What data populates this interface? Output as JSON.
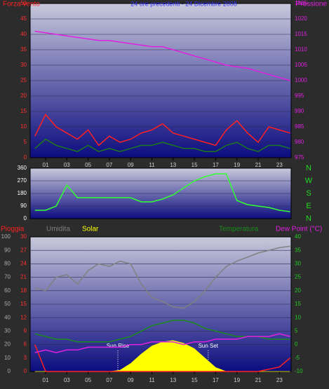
{
  "chart_data": [
    {
      "type": "line",
      "title": "24 ore precedenti - 24 Dicembre 2008",
      "x": [
        0,
        1,
        2,
        3,
        4,
        5,
        6,
        7,
        8,
        9,
        10,
        11,
        12,
        13,
        14,
        15,
        16,
        17,
        18,
        19,
        20,
        21,
        22,
        23,
        24
      ],
      "xlim": [
        -0.45,
        24.1
      ],
      "xticks": [
        {
          "value": 1,
          "label": "01"
        },
        {
          "value": 3,
          "label": "03"
        },
        {
          "value": 5,
          "label": "05"
        },
        {
          "value": 7,
          "label": "07"
        },
        {
          "value": 9,
          "label": "09"
        },
        {
          "value": 11,
          "label": "11"
        },
        {
          "value": 13,
          "label": "13"
        },
        {
          "value": 15,
          "label": "15"
        },
        {
          "value": 17,
          "label": "17"
        },
        {
          "value": 19,
          "label": "19"
        },
        {
          "value": 21,
          "label": "21"
        },
        {
          "value": 23,
          "label": "23"
        }
      ],
      "ylim": [
        0,
        50
      ],
      "yticks": [
        0,
        5,
        10,
        15,
        20,
        25,
        30,
        35,
        40,
        45,
        50
      ],
      "y2lim": [
        975,
        1025
      ],
      "y2ticks": [
        975,
        980,
        985,
        990,
        995,
        1000,
        1005,
        1010,
        1015,
        1020,
        1025
      ],
      "grid": true,
      "series": [
        {
          "name": "Forza vento",
          "color": "#ff2020",
          "values": [
            7,
            14,
            10,
            8,
            6,
            9,
            4,
            7,
            5,
            6,
            8,
            9,
            11,
            8,
            7,
            6,
            5,
            4,
            9,
            12,
            8,
            5,
            10,
            9,
            8
          ]
        },
        {
          "color": "#1c7a1c",
          "values": [
            3,
            6,
            4,
            3,
            2,
            4,
            2,
            3,
            2,
            3,
            4,
            4,
            5,
            4,
            3,
            3,
            2,
            2,
            4,
            5,
            3,
            2,
            4,
            4,
            3
          ]
        },
        {
          "name": "Pressione",
          "color": "#e020e0",
          "axis": "y2",
          "values": [
            1016,
            1015.5,
            1015,
            1014.5,
            1014,
            1013.5,
            1013,
            1013,
            1012.5,
            1012,
            1011.5,
            1011,
            1011,
            1010,
            1009,
            1008,
            1007,
            1006,
            1005,
            1004.5,
            1004,
            1003,
            1002,
            1001,
            1000
          ]
        }
      ]
    },
    {
      "type": "line",
      "x": [
        0,
        1,
        2,
        3,
        4,
        5,
        6,
        7,
        8,
        9,
        10,
        11,
        12,
        13,
        14,
        15,
        16,
        17,
        18,
        19,
        20,
        21,
        22,
        23,
        24
      ],
      "xlim": [
        -0.45,
        24.1
      ],
      "ylim": [
        0,
        360
      ],
      "yticks": [
        0,
        90,
        180,
        270,
        360
      ],
      "y2lim": [
        0,
        360
      ],
      "y2ticks": [
        {
          "value": 360,
          "label": "N"
        },
        {
          "value": 270,
          "label": "W"
        },
        {
          "value": 180,
          "label": "S"
        },
        {
          "value": 90,
          "label": "E"
        },
        {
          "value": 0,
          "label": "N"
        }
      ],
      "grid": true,
      "series": [
        {
          "color": "#33ff33",
          "values": [
            60,
            60,
            90,
            240,
            150,
            150,
            150,
            150,
            150,
            150,
            120,
            120,
            140,
            170,
            220,
            270,
            300,
            320,
            320,
            130,
            100,
            90,
            80,
            60,
            50
          ]
        }
      ]
    },
    {
      "type": "line",
      "x": [
        0,
        1,
        2,
        3,
        4,
        5,
        6,
        7,
        8,
        9,
        10,
        11,
        12,
        13,
        14,
        15,
        16,
        17,
        18,
        19,
        20,
        21,
        22,
        23,
        24
      ],
      "xlim": [
        -0.45,
        24.1
      ],
      "xticks": [
        {
          "value": 1,
          "label": "01"
        },
        {
          "value": 3,
          "label": "03"
        },
        {
          "value": 5,
          "label": "05"
        },
        {
          "value": 7,
          "label": "07"
        },
        {
          "value": 9,
          "label": "09"
        },
        {
          "value": 11,
          "label": "11"
        },
        {
          "value": 13,
          "label": "13"
        },
        {
          "value": 15,
          "label": "15"
        },
        {
          "value": 17,
          "label": "17"
        },
        {
          "value": 19,
          "label": "19"
        },
        {
          "value": 21,
          "label": "21"
        },
        {
          "value": 23,
          "label": "23"
        }
      ],
      "ylim": [
        0,
        100
      ],
      "yticks": [
        0,
        10,
        20,
        30,
        40,
        50,
        60,
        70,
        80,
        90,
        100
      ],
      "y3lim": [
        0,
        30
      ],
      "y3ticks": [
        0,
        3,
        6,
        9,
        12,
        15,
        18,
        21,
        24,
        27,
        30
      ],
      "y2lim": [
        -10,
        40
      ],
      "y2ticks": [
        -10,
        -5,
        0,
        5,
        10,
        15,
        20,
        25,
        30,
        35,
        40
      ],
      "grid": true,
      "series": [
        {
          "name": "Pioggia",
          "color": "#ff2020",
          "axis": "y3",
          "values": [
            6,
            0,
            0,
            0,
            0,
            0,
            0,
            0,
            0,
            0,
            0,
            0,
            0,
            0,
            0,
            0,
            0,
            0,
            0,
            0,
            0,
            0,
            0.5,
            1,
            3
          ]
        },
        {
          "name": "Umidita",
          "color": "#808080",
          "values": [
            62,
            60,
            70,
            72,
            65,
            75,
            80,
            78,
            82,
            80,
            65,
            55,
            52,
            48,
            47,
            52,
            60,
            70,
            78,
            82,
            85,
            88,
            90,
            92,
            93
          ]
        },
        {
          "name": "Solar",
          "color": "#ffff00",
          "fill": true,
          "values": [
            0,
            0,
            0,
            0,
            0,
            0,
            0,
            0,
            1,
            6,
            13,
            19,
            22,
            23,
            21,
            17,
            10,
            3,
            0,
            0,
            0,
            0,
            0,
            0,
            0
          ]
        },
        {
          "name": "Temperatura",
          "color": "#1a8c1a",
          "axis": "y2",
          "values": [
            4,
            3,
            2,
            2,
            1,
            1,
            1,
            1,
            2,
            3,
            5,
            7,
            8,
            9,
            9,
            8,
            6,
            5,
            4,
            3,
            3,
            3,
            2,
            2,
            2
          ]
        },
        {
          "name": "Dew Point (°C)",
          "color": "#e020e0",
          "axis": "y2",
          "values": [
            -3,
            -2,
            -3,
            -2,
            -2,
            -1,
            -1,
            -1,
            -1,
            0,
            0,
            1,
            1,
            1,
            0,
            1,
            1,
            2,
            2,
            2,
            3,
            3,
            3,
            4,
            3
          ]
        }
      ],
      "annotations": [
        {
          "text": "Sun Rise",
          "x": 7.8
        },
        {
          "text": "Sun Set",
          "x": 16.3
        }
      ]
    }
  ]
}
